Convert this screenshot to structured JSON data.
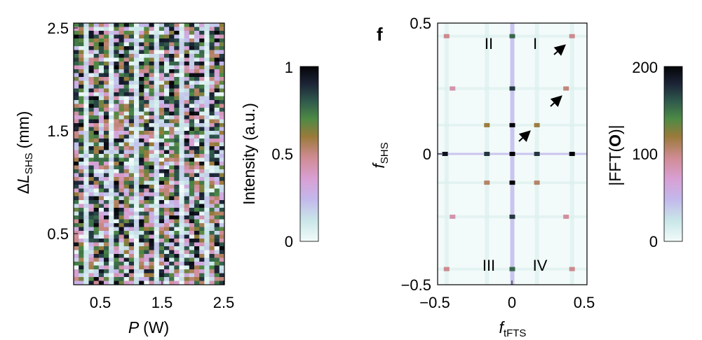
{
  "chart_data": [
    {
      "type": "heatmap",
      "panel": "left",
      "xlabel_main": "P",
      "xlabel_unit": "(W)",
      "ylabel_delta": "Δ",
      "ylabel_main": "L",
      "ylabel_sub": "SHS",
      "ylabel_unit": "(mm)",
      "xticks": [
        "0.5",
        "1.5",
        "2.5"
      ],
      "yticks": [
        "0.5",
        "1.5",
        "2.5"
      ],
      "xlim": [
        0.05,
        2.5
      ],
      "ylim": [
        0,
        2.5
      ],
      "x_tick_values": [
        0.5,
        1.5,
        2.5
      ],
      "y_tick_values": [
        0.5,
        1.5,
        2.5
      ],
      "colorbar": {
        "label": "Intensity (a.u.)",
        "ticks": [
          "1",
          "0.5",
          "0"
        ],
        "tick_values": [
          1,
          0.5,
          0
        ],
        "range": [
          0,
          1
        ]
      },
      "colormap": [
        "#f2fbfa",
        "#c9e6e8",
        "#c3b8ec",
        "#d99fd3",
        "#cf8b92",
        "#9a7a3a",
        "#4e8a45",
        "#2f5a4c",
        "#1c2437",
        "#050507"
      ]
    },
    {
      "type": "heatmap",
      "panel": "right",
      "panel_letter": "f",
      "xlabel_main": "f",
      "xlabel_sub": "tFTS",
      "ylabel_main": "f",
      "ylabel_sub": "SHS",
      "xticks": [
        "−0.5",
        "0",
        "0.5"
      ],
      "yticks": [
        "0.5",
        "0",
        "−0.5"
      ],
      "x_tick_values": [
        -0.5,
        0,
        0.5
      ],
      "y_tick_values": [
        0.5,
        0,
        -0.5
      ],
      "xlim": [
        -0.5,
        0.5
      ],
      "ylim": [
        -0.5,
        0.5
      ],
      "quadrant_labels": [
        "II",
        "I",
        "III",
        "IV"
      ],
      "colorbar": {
        "label_pre": "|FFT(",
        "label_bold": "O",
        "label_post": ")|",
        "ticks": [
          "200",
          "100",
          "0"
        ],
        "tick_values": [
          200,
          100,
          0
        ],
        "range": [
          0,
          200
        ]
      },
      "peaks": [
        {
          "x": -0.44,
          "y": 0.45,
          "v": 90
        },
        {
          "x": 0.4,
          "y": 0.45,
          "v": 90
        },
        {
          "x": -0.4,
          "y": 0.25,
          "v": 80
        },
        {
          "x": 0.36,
          "y": 0.25,
          "v": 95
        },
        {
          "x": -0.17,
          "y": 0.11,
          "v": 110
        },
        {
          "x": 0.165,
          "y": 0.11,
          "v": 110
        },
        {
          "x": -0.17,
          "y": -0.11,
          "v": 100
        },
        {
          "x": 0.165,
          "y": -0.11,
          "v": 100
        },
        {
          "x": -0.4,
          "y": -0.24,
          "v": 80
        },
        {
          "x": 0.36,
          "y": -0.24,
          "v": 85
        },
        {
          "x": -0.44,
          "y": -0.44,
          "v": 90
        },
        {
          "x": 0.4,
          "y": -0.44,
          "v": 90
        },
        {
          "x": 0.0,
          "y": 0.45,
          "v": 150
        },
        {
          "x": 0.0,
          "y": 0.25,
          "v": 170
        },
        {
          "x": 0.0,
          "y": 0.11,
          "v": 200
        },
        {
          "x": 0.0,
          "y": -0.11,
          "v": 200
        },
        {
          "x": 0.0,
          "y": -0.24,
          "v": 170
        },
        {
          "x": 0.0,
          "y": -0.44,
          "v": 150
        },
        {
          "x": -0.45,
          "y": 0.0,
          "v": 190
        },
        {
          "x": -0.17,
          "y": 0.0,
          "v": 170
        },
        {
          "x": 0.165,
          "y": 0.0,
          "v": 170
        },
        {
          "x": 0.4,
          "y": 0.0,
          "v": 200
        },
        {
          "x": 0.0,
          "y": 0.0,
          "v": 200
        }
      ]
    }
  ]
}
